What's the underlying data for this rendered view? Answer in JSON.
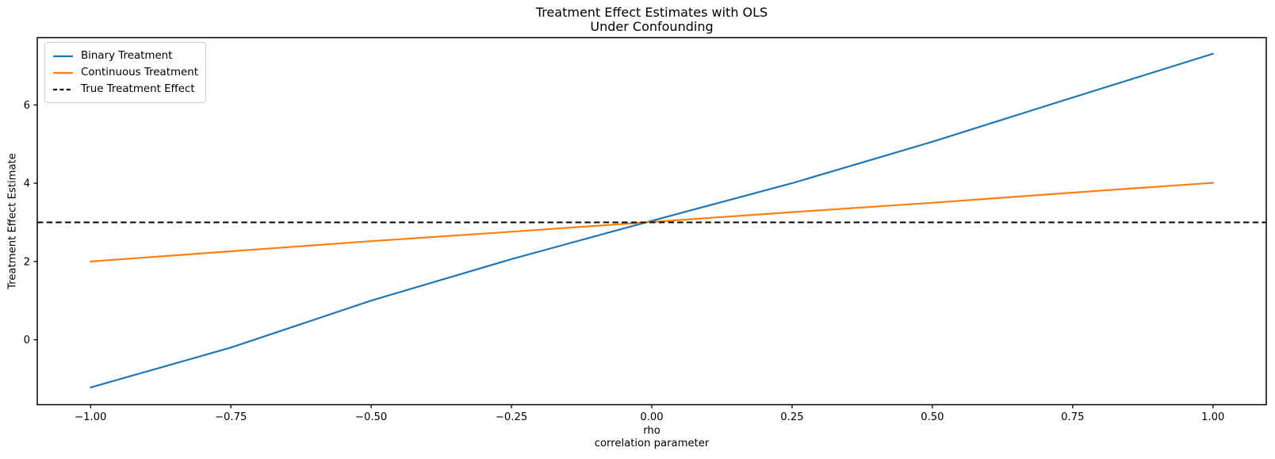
{
  "chart_data": {
    "type": "line",
    "title": "Treatment Effect Estimates with OLS",
    "subtitle": "Under Confounding",
    "xlabel_line1": "rho",
    "xlabel_line2": "correlation parameter",
    "ylabel": "Treatment Effect Estimate",
    "x": [
      -1.0,
      -0.75,
      -0.5,
      -0.25,
      0.0,
      0.25,
      0.5,
      0.75,
      1.0
    ],
    "series": [
      {
        "name": "Binary Treatment",
        "color": "#1f77b4",
        "linestyle": "solid",
        "values": [
          -1.22,
          -0.2,
          1.0,
          2.06,
          3.04,
          4.0,
          5.06,
          6.19,
          7.31
        ]
      },
      {
        "name": "Continuous Treatment",
        "color": "#ff7f0e",
        "linestyle": "solid",
        "values": [
          2.0,
          2.26,
          2.52,
          2.76,
          3.01,
          3.26,
          3.5,
          3.76,
          4.01
        ]
      },
      {
        "name": "True Treatment Effect",
        "color": "#000000",
        "linestyle": "dashed",
        "axhline_y": 3.0
      }
    ],
    "xlim": [
      -1.095,
      1.095
    ],
    "ylim": [
      -1.66,
      7.72
    ],
    "xticks": [
      -1.0,
      -0.75,
      -0.5,
      -0.25,
      0.0,
      0.25,
      0.5,
      0.75,
      1.0
    ],
    "xtick_labels": [
      "−1.00",
      "−0.75",
      "−0.50",
      "−0.25",
      "0.00",
      "0.25",
      "0.50",
      "0.75",
      "1.00"
    ],
    "yticks": [
      0,
      2,
      4,
      6
    ],
    "ytick_labels": [
      "0",
      "2",
      "4",
      "6"
    ],
    "legend_position": "upper left",
    "grid": false,
    "axis_color": "#000000",
    "background_color": "#ffffff"
  }
}
